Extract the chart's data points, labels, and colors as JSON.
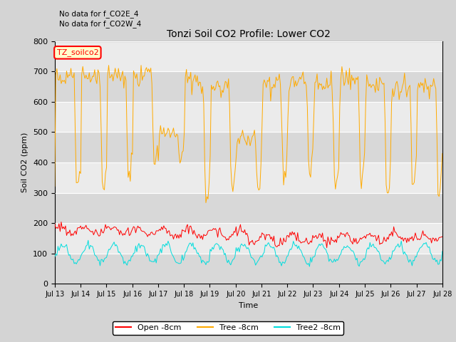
{
  "title": "Tonzi Soil CO2 Profile: Lower CO2",
  "xlabel": "Time",
  "ylabel": "Soil CO2 (ppm)",
  "ylim": [
    0,
    800
  ],
  "yticks": [
    0,
    100,
    200,
    300,
    400,
    500,
    600,
    700,
    800
  ],
  "xtick_labels": [
    "Jul 13",
    "Jul 14",
    "Jul 15",
    "Jul 16",
    "Jul 17",
    "Jul 18",
    "Jul 19",
    "Jul 20",
    "Jul 21",
    "Jul 22",
    "Jul 23",
    "Jul 24",
    "Jul 25",
    "Jul 26",
    "Jul 27",
    "Jul 28"
  ],
  "annotation1": "No data for f_CO2E_4",
  "annotation2": "No data for f_CO2W_4",
  "legend_box_label": "TZ_soilco2",
  "series": [
    {
      "label": "Open -8cm",
      "color": "#ff0000"
    },
    {
      "label": "Tree -8cm",
      "color": "#ffaa00"
    },
    {
      "label": "Tree2 -8cm",
      "color": "#00dddd"
    }
  ],
  "fig_bg": "#d4d4d4",
  "plot_bg": "#ebebeb",
  "band_color": "#d8d8d8",
  "grid_color": "#ffffff"
}
